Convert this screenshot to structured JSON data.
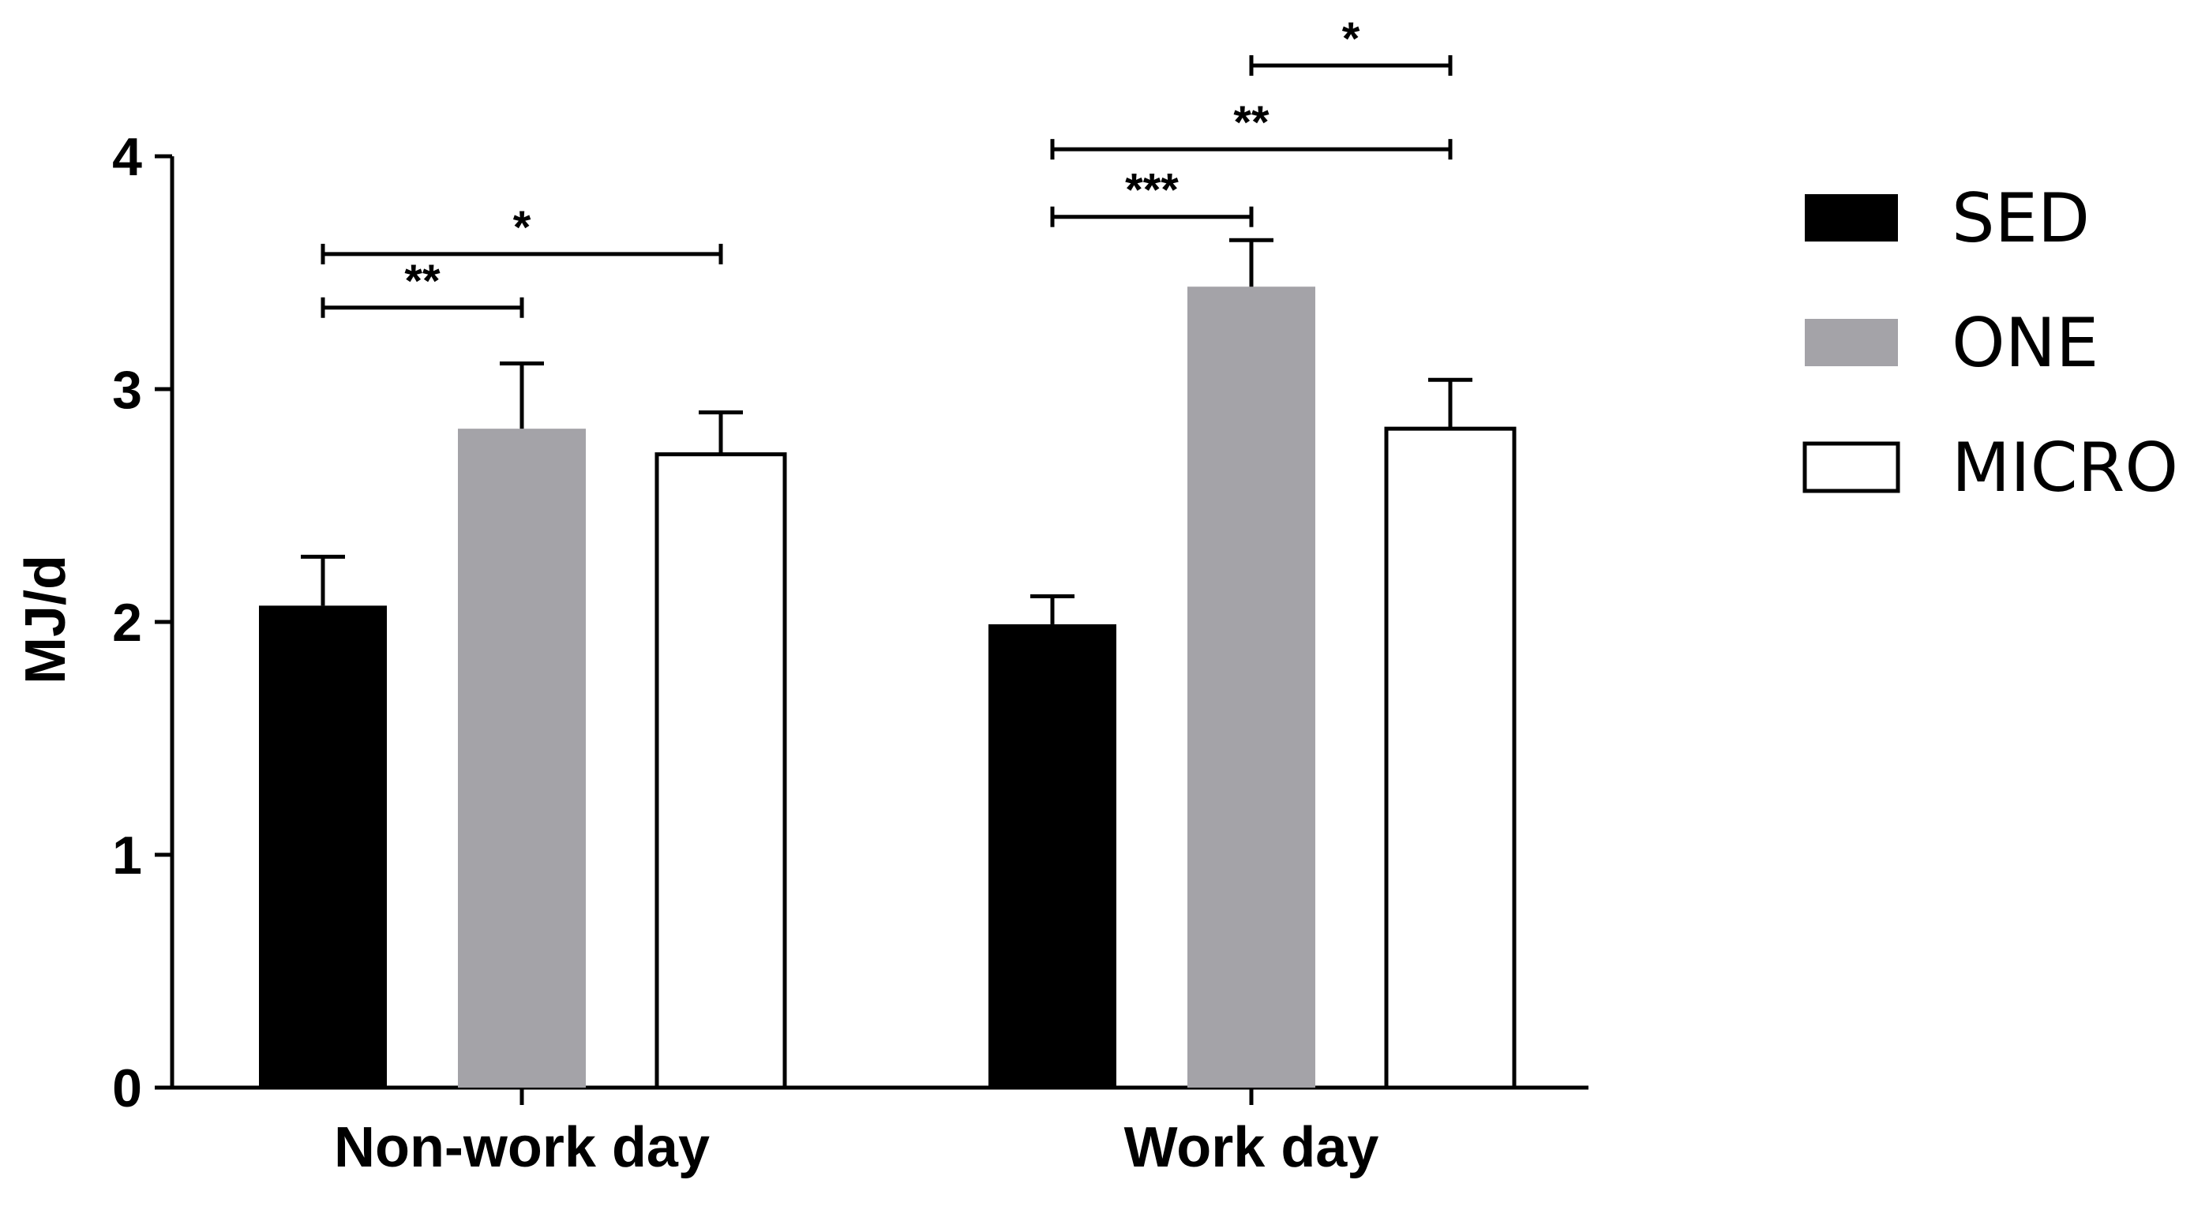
{
  "chart_data": {
    "type": "bar",
    "title": "",
    "xlabel": "",
    "ylabel": "MJ/d",
    "ylim": [
      0,
      4
    ],
    "yticks": [
      "0",
      "1",
      "2",
      "3",
      "4"
    ],
    "categories": [
      "Non-work day",
      "Work day"
    ],
    "legend_position": "right",
    "grid": false,
    "series": [
      {
        "name": "SED",
        "color": "#000000",
        "values": [
          2.07,
          1.99
        ],
        "errors": [
          0.21,
          0.12
        ]
      },
      {
        "name": "ONE",
        "color": "#a4a3a8",
        "values": [
          2.83,
          3.44
        ],
        "errors": [
          0.28,
          0.2
        ]
      },
      {
        "name": "MICRO",
        "color": "#ffffff",
        "values": [
          2.72,
          2.83
        ],
        "errors": [
          0.18,
          0.21
        ]
      }
    ],
    "significance": [
      {
        "category": 0,
        "from": 0,
        "to": 1,
        "label": "**"
      },
      {
        "category": 0,
        "from": 0,
        "to": 2,
        "label": "*"
      },
      {
        "category": 1,
        "from": 0,
        "to": 1,
        "label": "***"
      },
      {
        "category": 1,
        "from": 0,
        "to": 2,
        "label": "**"
      },
      {
        "category": 1,
        "from": 1,
        "to": 2,
        "label": "*"
      }
    ]
  }
}
